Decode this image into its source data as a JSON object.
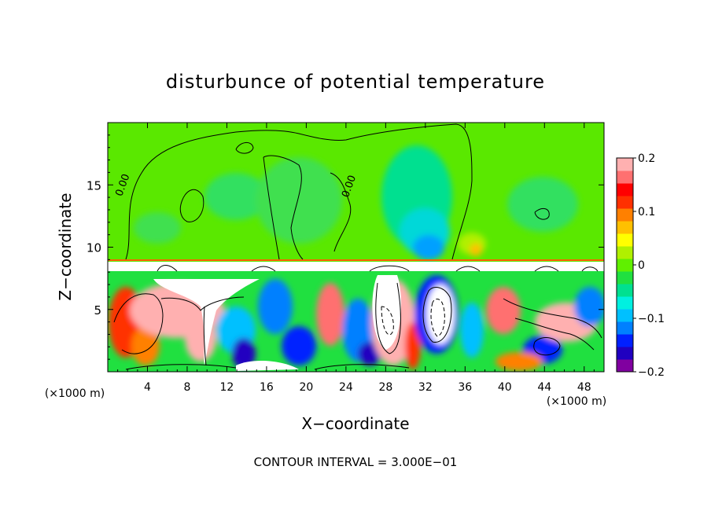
{
  "chart_data": {
    "type": "heatmap",
    "title": "disturbunce of potential temperature",
    "xlabel": "X−coordinate",
    "ylabel": "Z−coordinate",
    "x_unit_left": "(×1000 m)",
    "x_unit_right": "(×1000 m)",
    "xlim": [
      0,
      50
    ],
    "ylim": [
      0,
      20
    ],
    "x_ticks": [
      4,
      8,
      12,
      16,
      20,
      24,
      28,
      32,
      36,
      40,
      44,
      48
    ],
    "y_ticks": [
      5,
      10,
      15
    ],
    "colorbar": {
      "range": [
        -0.2,
        0.2
      ],
      "ticks": [
        {
          "value": 0.2,
          "label": "0.2"
        },
        {
          "value": 0.1,
          "label": "0.1"
        },
        {
          "value": 0,
          "label": "0"
        },
        {
          "value": -0.1,
          "label": "−0.1"
        },
        {
          "value": -0.2,
          "label": "−0.2"
        }
      ],
      "colors": [
        "#8000a0",
        "#2000c0",
        "#0020ff",
        "#0080ff",
        "#00c0ff",
        "#00f0e0",
        "#00e090",
        "#20e040",
        "#60f000",
        "#b0f000",
        "#ffff00",
        "#ffc000",
        "#ff8000",
        "#ff3000",
        "#ff0000",
        "#ff7070",
        "#ffb0b0"
      ]
    },
    "contour_labels": [
      {
        "x": 1.8,
        "z": 14.9,
        "text": "0.00"
      },
      {
        "x": 24.6,
        "z": 14.8,
        "text": "0.00"
      }
    ],
    "annotation": "CONTOUR INTERVAL = 3.000E−01"
  }
}
